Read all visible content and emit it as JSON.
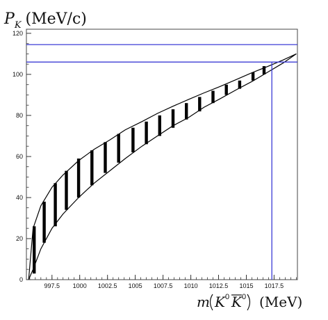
{
  "chart_data": {
    "type": "area",
    "title": "",
    "ylabel_symbol": "P",
    "ylabel_subscript": "K",
    "ylabel_unit": "(MeV/c)",
    "xlabel_prefix": "m",
    "xlabel_k": "K",
    "xlabel_kbar": "K",
    "xlabel_sup": "0",
    "xlabel_unit": "(MeV)",
    "xlim": [
      995.2,
      1019.6
    ],
    "ylim": [
      0,
      122
    ],
    "xticks": [
      997.5,
      1000,
      1002.5,
      1005,
      1007.5,
      1010,
      1012.5,
      1015,
      1017.5
    ],
    "xtick_labels": [
      "997.5",
      "1000",
      "1002.5",
      "1005",
      "1007.5",
      "1010",
      "1012.5",
      "1015",
      "1017.5"
    ],
    "yticks": [
      0,
      20,
      40,
      60,
      80,
      100,
      120
    ],
    "ytick_labels": [
      "0",
      "20",
      "40",
      "60",
      "80",
      "100",
      "120"
    ],
    "upper_boundary": {
      "x": [
        995.4,
        995.8,
        996.5,
        997.5,
        998.5,
        999.9,
        1001.3,
        1002.7,
        1004.1,
        1005.6,
        1007.0,
        1008.4,
        1009.8,
        1011.2,
        1012.6,
        1014.1,
        1015.5,
        1016.9,
        1018.3,
        1019.5
      ],
      "y": [
        0,
        25,
        36,
        45,
        51,
        58,
        63.5,
        68,
        73,
        77,
        81,
        84.5,
        87.8,
        91,
        94,
        97.5,
        100.8,
        103.8,
        107,
        110
      ]
    },
    "lower_boundary": {
      "x": [
        995.4,
        995.8,
        996.5,
        997.5,
        998.5,
        999.9,
        1001.3,
        1002.7,
        1004.1,
        1005.6,
        1007.0,
        1008.4,
        1009.8,
        1011.2,
        1012.6,
        1014.1,
        1015.5,
        1016.9,
        1018.3,
        1019.5
      ],
      "y": [
        0,
        5,
        15,
        25,
        32,
        40,
        47,
        53,
        59,
        65,
        70,
        75,
        79,
        84,
        88,
        92.5,
        96.5,
        101,
        105.5,
        110
      ]
    },
    "vertical_bars": [
      {
        "x": 995.9,
        "y_low": 3,
        "y_high": 26
      },
      {
        "x": 996.8,
        "y_low": 18,
        "y_high": 38
      },
      {
        "x": 997.8,
        "y_low": 26,
        "y_high": 47
      },
      {
        "x": 998.8,
        "y_low": 34,
        "y_high": 53
      },
      {
        "x": 999.9,
        "y_low": 40,
        "y_high": 59
      },
      {
        "x": 1001.1,
        "y_low": 46,
        "y_high": 63
      },
      {
        "x": 1002.3,
        "y_low": 52,
        "y_high": 67
      },
      {
        "x": 1003.5,
        "y_low": 57,
        "y_high": 71
      },
      {
        "x": 1004.8,
        "y_low": 62,
        "y_high": 74
      },
      {
        "x": 1006.0,
        "y_low": 66,
        "y_high": 77
      },
      {
        "x": 1007.2,
        "y_low": 70,
        "y_high": 80
      },
      {
        "x": 1008.4,
        "y_low": 74,
        "y_high": 83
      },
      {
        "x": 1009.6,
        "y_low": 78,
        "y_high": 86
      },
      {
        "x": 1010.8,
        "y_low": 82,
        "y_high": 89
      },
      {
        "x": 1012.0,
        "y_low": 86,
        "y_high": 92
      },
      {
        "x": 1013.2,
        "y_low": 90,
        "y_high": 95
      },
      {
        "x": 1014.4,
        "y_low": 93,
        "y_high": 97
      },
      {
        "x": 1015.6,
        "y_low": 97,
        "y_high": 101
      },
      {
        "x": 1016.6,
        "y_low": 100,
        "y_high": 104
      }
    ],
    "reference_lines": {
      "horizontal": [
        114.5,
        106
      ],
      "vertical": [
        1017.3
      ]
    },
    "colors": {
      "reference_lines": "#3b3bd6",
      "outline": "#000000",
      "bars": "#000000"
    },
    "grid": false,
    "legend": "none"
  }
}
